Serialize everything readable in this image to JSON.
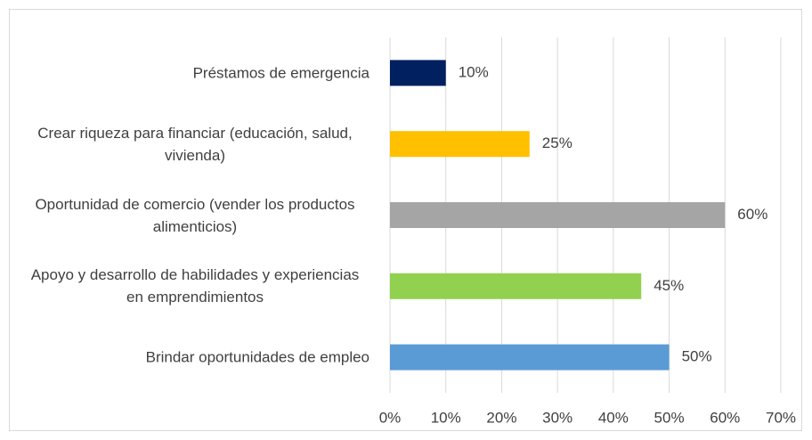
{
  "chart_data": {
    "type": "bar",
    "orientation": "horizontal",
    "categories": [
      "Préstamos de emergencia",
      "Crear riqueza para financiar (educación, salud, vivienda)",
      "Oportunidad de comercio (vender los productos alimenticios)",
      "Apoyo y desarrollo de habilidades y experiencias en emprendimientos",
      "Brindar oportunidades de empleo"
    ],
    "values": [
      10,
      25,
      60,
      45,
      50
    ],
    "value_labels": [
      "10%",
      "25%",
      "60%",
      "45%",
      "50%"
    ],
    "colors": [
      "#002060",
      "#ffc000",
      "#a5a5a5",
      "#92d050",
      "#5b9bd5"
    ],
    "xlim": [
      0,
      70
    ],
    "xticks": [
      {
        "value": 0,
        "label": "0%"
      },
      {
        "value": 10,
        "label": "10%"
      },
      {
        "value": 20,
        "label": "20%"
      },
      {
        "value": 30,
        "label": "30%"
      },
      {
        "value": 40,
        "label": "40%"
      },
      {
        "value": 50,
        "label": "50%"
      },
      {
        "value": 60,
        "label": "60%"
      },
      {
        "value": 70,
        "label": "70%"
      }
    ],
    "grid": true
  }
}
